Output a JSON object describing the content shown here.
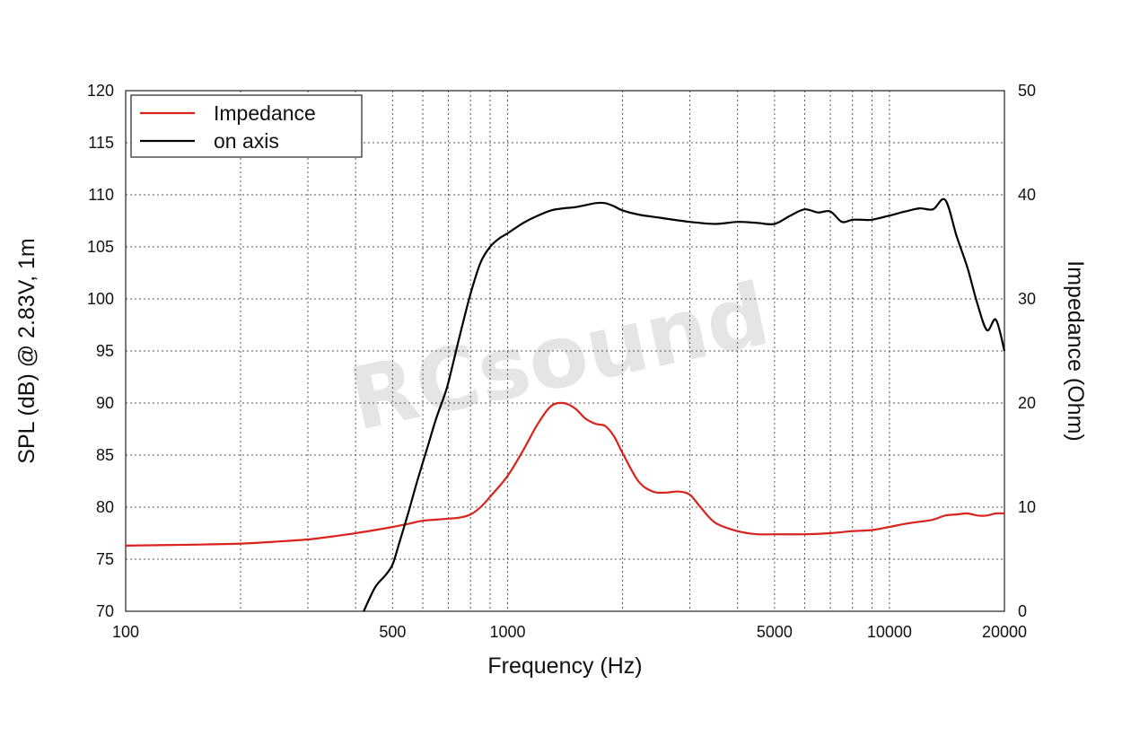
{
  "chart_data": {
    "type": "line",
    "title": "",
    "xlabel": "Frequency (Hz)",
    "ylabel": "SPL (dB) @ 2.83V, 1m",
    "y2label": "Impedance (Ohm)",
    "xscale": "log",
    "xlim": [
      100,
      20000
    ],
    "ylim": [
      70,
      120
    ],
    "y2lim": [
      0,
      50
    ],
    "x_ticks": [
      100,
      500,
      1000,
      5000,
      10000,
      20000
    ],
    "x_tick_labels": [
      "100",
      "500",
      "1000",
      "5000",
      "10000",
      "20000"
    ],
    "y_ticks": [
      70,
      75,
      80,
      85,
      90,
      95,
      100,
      105,
      110,
      115,
      120
    ],
    "y_tick_labels": [
      "70",
      "75",
      "80",
      "85",
      "90",
      "95",
      "100",
      "105",
      "110",
      "115",
      "120"
    ],
    "y2_ticks": [
      0,
      10,
      20,
      30,
      40,
      50
    ],
    "y2_tick_labels": [
      "0",
      "10",
      "20",
      "30",
      "40",
      "50"
    ],
    "grid": true,
    "legend_position": "top-left",
    "watermark": "RCsound",
    "series": [
      {
        "name": "Impedance",
        "axis": "right",
        "color": "#d9231d",
        "x": [
          100,
          150,
          200,
          250,
          300,
          350,
          400,
          450,
          500,
          550,
          600,
          650,
          700,
          750,
          800,
          850,
          900,
          1000,
          1100,
          1200,
          1300,
          1400,
          1500,
          1600,
          1700,
          1800,
          1900,
          2000,
          2200,
          2400,
          2600,
          2800,
          3000,
          3200,
          3500,
          4000,
          4500,
          5000,
          6000,
          7000,
          8000,
          9000,
          10000,
          11000,
          12000,
          13000,
          14000,
          15000,
          16000,
          17000,
          18000,
          19000,
          20000
        ],
        "y": [
          6.3,
          6.4,
          6.5,
          6.7,
          6.9,
          7.2,
          7.5,
          7.8,
          8.1,
          8.4,
          8.7,
          8.8,
          8.9,
          9.0,
          9.3,
          10.0,
          11.0,
          13.0,
          15.5,
          18.0,
          19.7,
          20.0,
          19.5,
          18.5,
          18.0,
          17.8,
          16.8,
          15.2,
          12.5,
          11.5,
          11.4,
          11.5,
          11.2,
          10.0,
          8.5,
          7.7,
          7.4,
          7.4,
          7.4,
          7.5,
          7.7,
          7.8,
          8.1,
          8.4,
          8.6,
          8.8,
          9.2,
          9.3,
          9.4,
          9.2,
          9.2,
          9.4,
          9.4
        ]
      },
      {
        "name": "on axis",
        "axis": "left",
        "color": "#000000",
        "x": [
          420,
          450,
          480,
          500,
          520,
          550,
          580,
          620,
          650,
          680,
          700,
          750,
          800,
          850,
          900,
          950,
          1000,
          1100,
          1200,
          1300,
          1400,
          1500,
          1600,
          1700,
          1800,
          1900,
          2000,
          2200,
          2500,
          3000,
          3500,
          4000,
          4500,
          5000,
          5500,
          6000,
          6500,
          7000,
          7500,
          8000,
          8500,
          9000,
          10000,
          11000,
          12000,
          13000,
          14000,
          15000,
          16000,
          17000,
          18000,
          19000,
          20000
        ],
        "y": [
          70,
          72.3,
          73.5,
          74.5,
          76.5,
          79.5,
          82.5,
          86.0,
          88.5,
          90.5,
          92.0,
          96.5,
          100.5,
          103.5,
          105.0,
          105.8,
          106.3,
          107.3,
          108.0,
          108.5,
          108.7,
          108.8,
          109.0,
          109.2,
          109.2,
          108.9,
          108.5,
          108.1,
          107.8,
          107.4,
          107.2,
          107.4,
          107.3,
          107.2,
          108.0,
          108.6,
          108.3,
          108.4,
          107.4,
          107.6,
          107.6,
          107.6,
          108.0,
          108.4,
          108.7,
          108.6,
          109.5,
          106.0,
          103.0,
          99.5,
          97.0,
          98.0,
          95.0
        ]
      }
    ]
  }
}
